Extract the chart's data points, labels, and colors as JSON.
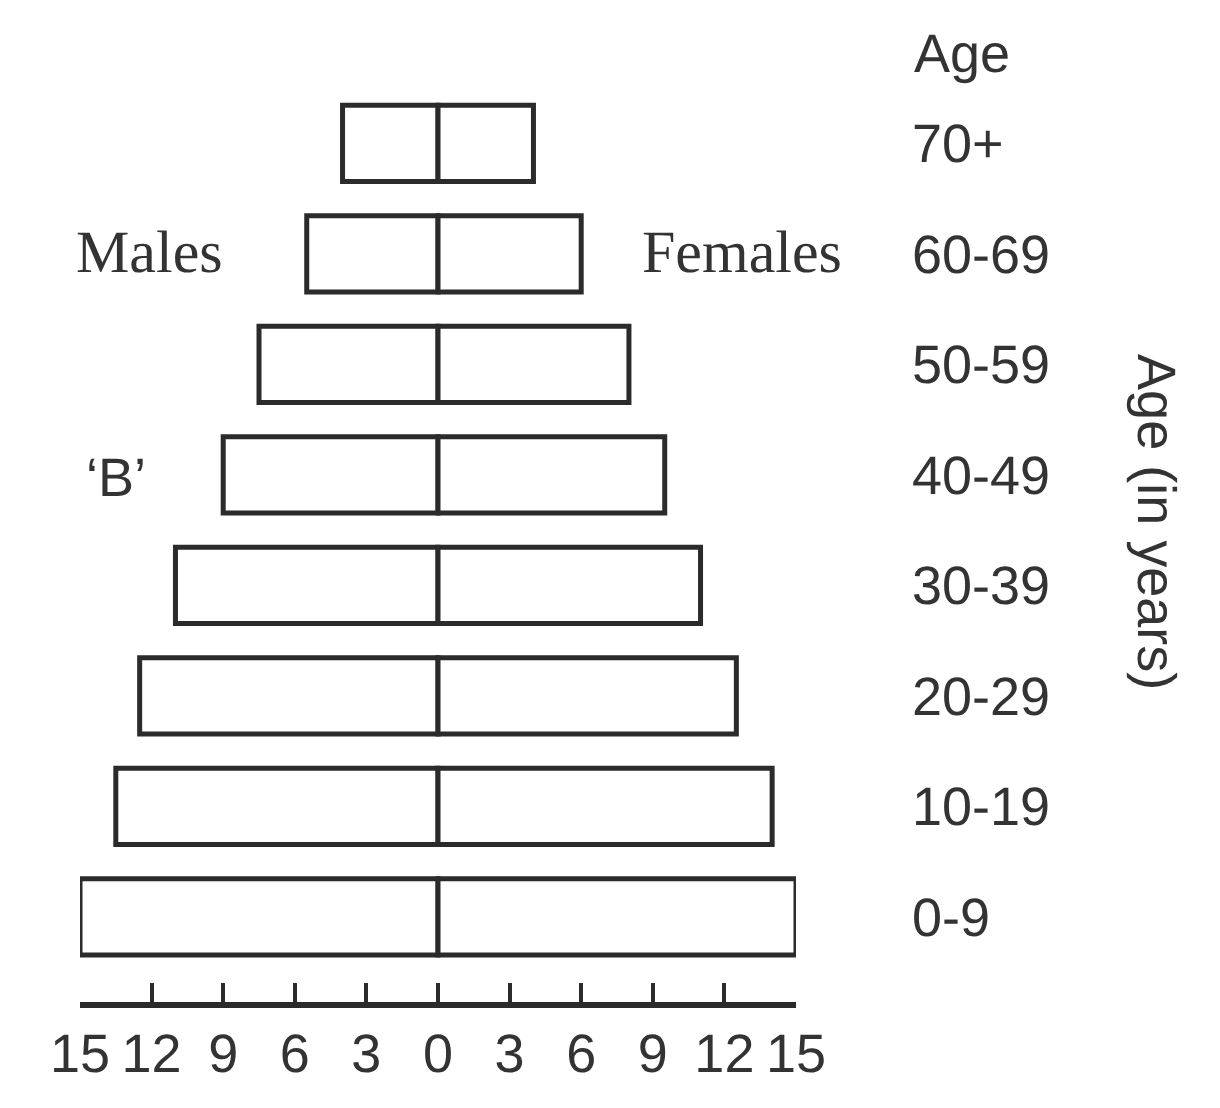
{
  "chart_data": {
    "type": "bar",
    "orientation": "horizontal",
    "stacked": true,
    "categories": [
      "70+",
      "60-69",
      "50-59",
      "40-49",
      "30-39",
      "20-29",
      "10-19",
      "0-9"
    ],
    "series": [
      {
        "name": "Males",
        "color": "#ffffff",
        "values": [
          -4,
          -5.5,
          -7.5,
          -9,
          -11,
          -12.5,
          -13.5,
          -15
        ]
      },
      {
        "name": "Females",
        "color": "#ffffff",
        "values": [
          4,
          6,
          8,
          9.5,
          11,
          12.5,
          14,
          15
        ]
      }
    ],
    "xlim": [
      -15,
      15
    ],
    "xticks": [
      {
        "value": -15,
        "label": "15"
      },
      {
        "value": -12,
        "label": "12"
      },
      {
        "value": -9,
        "label": "9"
      },
      {
        "value": -6,
        "label": "6"
      },
      {
        "value": -3,
        "label": "3"
      },
      0,
      3,
      6,
      9,
      12,
      15
    ],
    "ylabel": "Age (in years)",
    "annotations": [
      "Age",
      "‘B’"
    ]
  }
}
